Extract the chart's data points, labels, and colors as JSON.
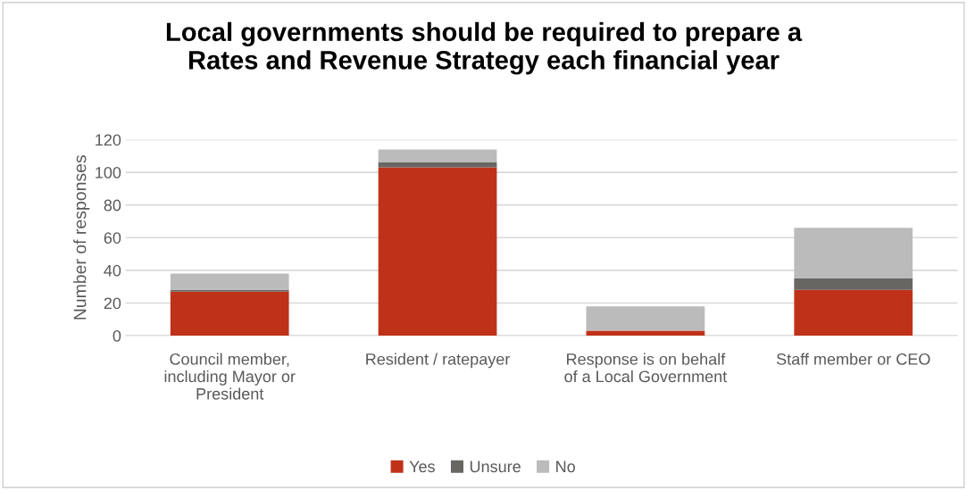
{
  "chart_data": {
    "type": "bar",
    "title": "Local governments should be required to prepare a\nRates and Revenue Strategy each financial year",
    "ylabel": "Number of responses",
    "categories": [
      "Council member,\nincluding Mayor or\nPresident",
      "Resident / ratepayer",
      "Response is on behalf\nof a Local Government",
      "Staff member or CEO"
    ],
    "series": [
      {
        "name": "Yes",
        "color": "#c0311a",
        "values": [
          27,
          103,
          3,
          28
        ]
      },
      {
        "name": "Unsure",
        "color": "#686663",
        "values": [
          1,
          3,
          0,
          7
        ]
      },
      {
        "name": "No",
        "color": "#bbbbbb",
        "values": [
          10,
          8,
          15,
          31
        ]
      }
    ],
    "stacked": true,
    "ylim": [
      0,
      120
    ],
    "yticks": [
      0,
      20,
      40,
      60,
      80,
      100,
      120
    ],
    "grid": "y",
    "legend": "bottom"
  }
}
